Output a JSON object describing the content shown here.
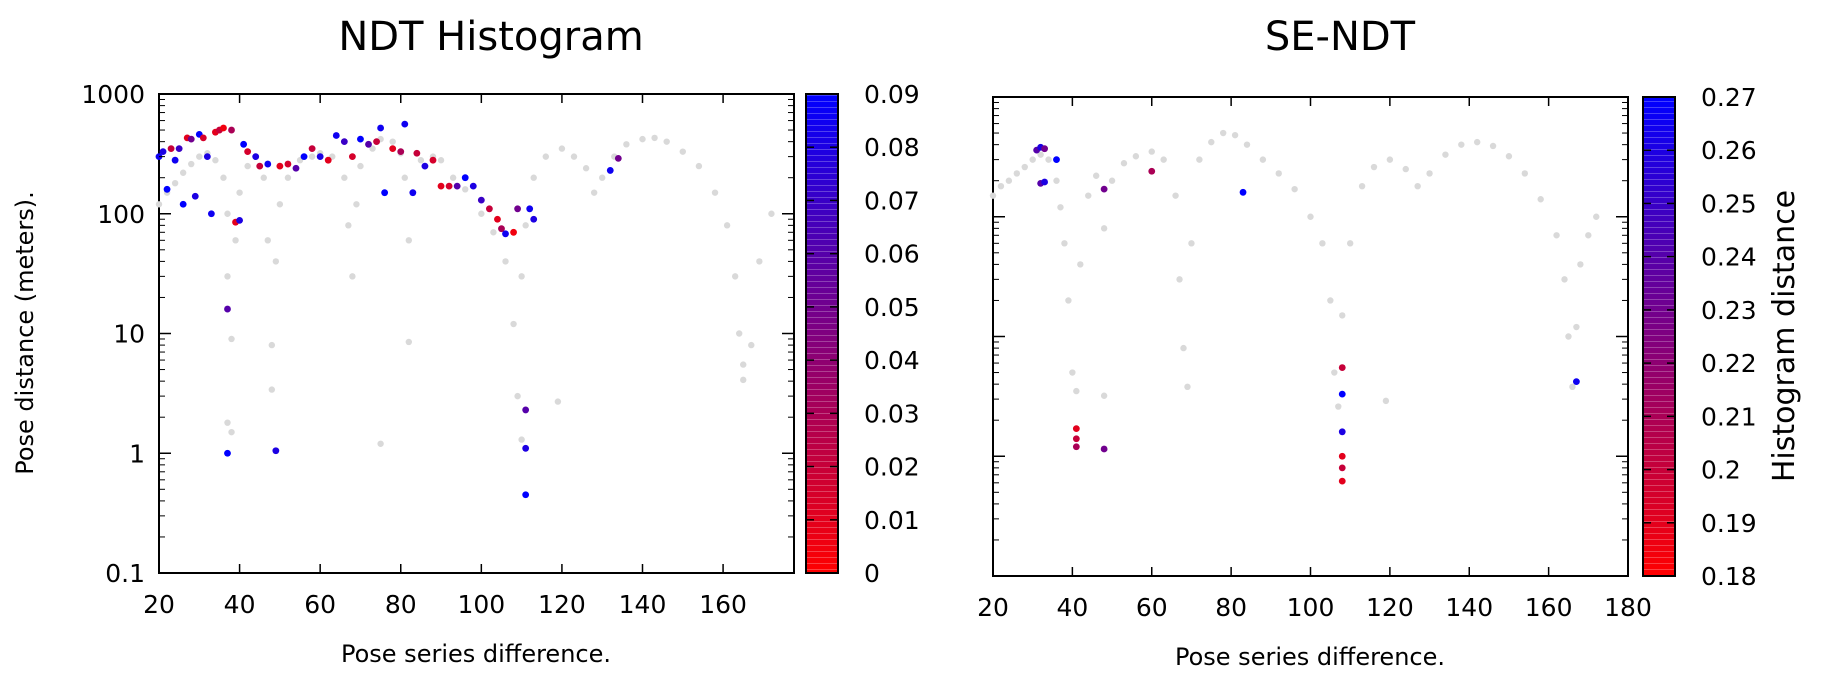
{
  "chart_data": [
    {
      "type": "scatter",
      "title": "NDT Histogram",
      "xlabel": "Pose series difference.",
      "ylabel": "Pose distance (meters).",
      "xlim": [
        20,
        180
      ],
      "ylim": [
        0.1,
        1000
      ],
      "y_scale": "log",
      "x_ticks": [
        "20",
        "40",
        "60",
        "80",
        "100",
        "120",
        "140",
        "160"
      ],
      "y_ticks": [
        "1000",
        "100",
        "10",
        "1",
        "0.1"
      ],
      "colorbar": {
        "label": "",
        "range": [
          0,
          0.09
        ],
        "ticks": [
          "0.09",
          "0.08",
          "0.07",
          "0.06",
          "0.05",
          "0.04",
          "0.03",
          "0.02",
          "0.01",
          "0"
        ],
        "colors": [
          "#ff0000",
          "#0000ff"
        ]
      },
      "background_color": "#d9d9d9",
      "background_series": [
        [
          20,
          120
        ],
        [
          22,
          150
        ],
        [
          24,
          180
        ],
        [
          26,
          220
        ],
        [
          28,
          260
        ],
        [
          30,
          300
        ],
        [
          32,
          320
        ],
        [
          34,
          280
        ],
        [
          36,
          200
        ],
        [
          37,
          100
        ],
        [
          37,
          30
        ],
        [
          37,
          1.8
        ],
        [
          38,
          1.5
        ],
        [
          38,
          9
        ],
        [
          39,
          60
        ],
        [
          40,
          150
        ],
        [
          42,
          250
        ],
        [
          44,
          300
        ],
        [
          46,
          200
        ],
        [
          47,
          60
        ],
        [
          48,
          8
        ],
        [
          48,
          3.4
        ],
        [
          49,
          40
        ],
        [
          50,
          120
        ],
        [
          52,
          200
        ],
        [
          55,
          280
        ],
        [
          58,
          300
        ],
        [
          60,
          320
        ],
        [
          63,
          300
        ],
        [
          66,
          200
        ],
        [
          67,
          80
        ],
        [
          68,
          30
        ],
        [
          69,
          120
        ],
        [
          70,
          250
        ],
        [
          73,
          350
        ],
        [
          75,
          420
        ],
        [
          75,
          1.2
        ],
        [
          78,
          400
        ],
        [
          80,
          320
        ],
        [
          81,
          200
        ],
        [
          82,
          60
        ],
        [
          82,
          8.5
        ],
        [
          83,
          150
        ],
        [
          85,
          280
        ],
        [
          88,
          300
        ],
        [
          90,
          280
        ],
        [
          93,
          200
        ],
        [
          96,
          160
        ],
        [
          100,
          100
        ],
        [
          103,
          70
        ],
        [
          106,
          40
        ],
        [
          108,
          12
        ],
        [
          109,
          3
        ],
        [
          110,
          1.3
        ],
        [
          110,
          30
        ],
        [
          111,
          80
        ],
        [
          113,
          200
        ],
        [
          116,
          300
        ],
        [
          119,
          2.7
        ],
        [
          120,
          350
        ],
        [
          123,
          300
        ],
        [
          126,
          240
        ],
        [
          128,
          150
        ],
        [
          130,
          200
        ],
        [
          133,
          300
        ],
        [
          136,
          380
        ],
        [
          140,
          420
        ],
        [
          143,
          430
        ],
        [
          146,
          400
        ],
        [
          150,
          330
        ],
        [
          154,
          250
        ],
        [
          158,
          150
        ],
        [
          161,
          80
        ],
        [
          163,
          30
        ],
        [
          164,
          10
        ],
        [
          165,
          5.5
        ],
        [
          165,
          4.1
        ],
        [
          167,
          8
        ],
        [
          169,
          40
        ],
        [
          172,
          100
        ]
      ],
      "points": [
        {
          "x": 20,
          "y": 300,
          "v": 0.085
        },
        {
          "x": 21,
          "y": 330,
          "v": 0.08
        },
        {
          "x": 22,
          "y": 160,
          "v": 0.09
        },
        {
          "x": 23,
          "y": 350,
          "v": 0.02
        },
        {
          "x": 24,
          "y": 280,
          "v": 0.085
        },
        {
          "x": 25,
          "y": 350,
          "v": 0.07
        },
        {
          "x": 26,
          "y": 120,
          "v": 0.09
        },
        {
          "x": 27,
          "y": 430,
          "v": 0.01
        },
        {
          "x": 28,
          "y": 420,
          "v": 0.05
        },
        {
          "x": 29,
          "y": 140,
          "v": 0.08
        },
        {
          "x": 30,
          "y": 460,
          "v": 0.09
        },
        {
          "x": 31,
          "y": 430,
          "v": 0.015
        },
        {
          "x": 32,
          "y": 300,
          "v": 0.08
        },
        {
          "x": 33,
          "y": 100,
          "v": 0.085
        },
        {
          "x": 34,
          "y": 480,
          "v": 0.01
        },
        {
          "x": 35,
          "y": 500,
          "v": 0.02
        },
        {
          "x": 36,
          "y": 520,
          "v": 0.005
        },
        {
          "x": 37,
          "y": 16,
          "v": 0.06
        },
        {
          "x": 37,
          "y": 1,
          "v": 0.09
        },
        {
          "x": 38,
          "y": 500,
          "v": 0.03
        },
        {
          "x": 39,
          "y": 85,
          "v": 0.01
        },
        {
          "x": 40,
          "y": 88,
          "v": 0.08
        },
        {
          "x": 41,
          "y": 380,
          "v": 0.09
        },
        {
          "x": 42,
          "y": 330,
          "v": 0.015
        },
        {
          "x": 44,
          "y": 300,
          "v": 0.08
        },
        {
          "x": 45,
          "y": 250,
          "v": 0.02
        },
        {
          "x": 47,
          "y": 260,
          "v": 0.085
        },
        {
          "x": 49,
          "y": 1.05,
          "v": 0.08
        },
        {
          "x": 50,
          "y": 250,
          "v": 0.01
        },
        {
          "x": 52,
          "y": 260,
          "v": 0.015
        },
        {
          "x": 54,
          "y": 240,
          "v": 0.06
        },
        {
          "x": 56,
          "y": 300,
          "v": 0.09
        },
        {
          "x": 58,
          "y": 350,
          "v": 0.02
        },
        {
          "x": 60,
          "y": 300,
          "v": 0.08
        },
        {
          "x": 62,
          "y": 280,
          "v": 0.01
        },
        {
          "x": 64,
          "y": 450,
          "v": 0.085
        },
        {
          "x": 66,
          "y": 400,
          "v": 0.07
        },
        {
          "x": 68,
          "y": 300,
          "v": 0.015
        },
        {
          "x": 70,
          "y": 420,
          "v": 0.09
        },
        {
          "x": 72,
          "y": 380,
          "v": 0.06
        },
        {
          "x": 74,
          "y": 400,
          "v": 0.02
        },
        {
          "x": 75,
          "y": 520,
          "v": 0.085
        },
        {
          "x": 76,
          "y": 150,
          "v": 0.09
        },
        {
          "x": 78,
          "y": 350,
          "v": 0.01
        },
        {
          "x": 80,
          "y": 330,
          "v": 0.03
        },
        {
          "x": 81,
          "y": 560,
          "v": 0.085
        },
        {
          "x": 83,
          "y": 150,
          "v": 0.085
        },
        {
          "x": 84,
          "y": 320,
          "v": 0.02
        },
        {
          "x": 86,
          "y": 250,
          "v": 0.08
        },
        {
          "x": 88,
          "y": 280,
          "v": 0.015
        },
        {
          "x": 90,
          "y": 170,
          "v": 0.01
        },
        {
          "x": 92,
          "y": 170,
          "v": 0.015
        },
        {
          "x": 94,
          "y": 170,
          "v": 0.06
        },
        {
          "x": 96,
          "y": 200,
          "v": 0.09
        },
        {
          "x": 98,
          "y": 170,
          "v": 0.08
        },
        {
          "x": 100,
          "y": 130,
          "v": 0.07
        },
        {
          "x": 102,
          "y": 110,
          "v": 0.02
        },
        {
          "x": 104,
          "y": 90,
          "v": 0.01
        },
        {
          "x": 105,
          "y": 75,
          "v": 0.03
        },
        {
          "x": 106,
          "y": 68,
          "v": 0.085
        },
        {
          "x": 108,
          "y": 70,
          "v": 0.005
        },
        {
          "x": 109,
          "y": 110,
          "v": 0.05
        },
        {
          "x": 111,
          "y": 2.3,
          "v": 0.06
        },
        {
          "x": 111,
          "y": 1.1,
          "v": 0.08
        },
        {
          "x": 111,
          "y": 0.45,
          "v": 0.09
        },
        {
          "x": 112,
          "y": 110,
          "v": 0.085
        },
        {
          "x": 113,
          "y": 90,
          "v": 0.08
        },
        {
          "x": 132,
          "y": 230,
          "v": 0.085
        },
        {
          "x": 134,
          "y": 290,
          "v": 0.05
        }
      ]
    },
    {
      "type": "scatter",
      "title": "SE-NDT",
      "xlabel": "Pose series difference.",
      "ylabel": "",
      "xlim": [
        20,
        180
      ],
      "ylim": [
        0.1,
        1000
      ],
      "y_scale": "log",
      "x_ticks": [
        "20",
        "40",
        "60",
        "80",
        "100",
        "120",
        "140",
        "160",
        "180"
      ],
      "colorbar": {
        "label": "Histogram distance",
        "range": [
          0.18,
          0.27
        ],
        "ticks": [
          "0.27",
          "0.26",
          "0.25",
          "0.24",
          "0.23",
          "0.22",
          "0.21",
          "0.2",
          "0.19",
          "0.18"
        ],
        "colors": [
          "#ff0000",
          "#0000ff"
        ]
      },
      "background_color": "#d9d9d9",
      "background_series": [
        [
          20,
          150
        ],
        [
          22,
          180
        ],
        [
          24,
          200
        ],
        [
          26,
          230
        ],
        [
          28,
          260
        ],
        [
          30,
          300
        ],
        [
          32,
          330
        ],
        [
          34,
          300
        ],
        [
          36,
          200
        ],
        [
          37,
          120
        ],
        [
          38,
          60
        ],
        [
          39,
          20
        ],
        [
          40,
          5
        ],
        [
          41,
          3.5
        ],
        [
          42,
          40
        ],
        [
          44,
          150
        ],
        [
          46,
          220
        ],
        [
          48,
          80
        ],
        [
          48,
          3.2
        ],
        [
          50,
          200
        ],
        [
          53,
          280
        ],
        [
          56,
          320
        ],
        [
          60,
          350
        ],
        [
          63,
          300
        ],
        [
          66,
          150
        ],
        [
          67,
          30
        ],
        [
          68,
          8
        ],
        [
          69,
          3.8
        ],
        [
          70,
          60
        ],
        [
          72,
          300
        ],
        [
          75,
          420
        ],
        [
          78,
          500
        ],
        [
          81,
          480
        ],
        [
          84,
          400
        ],
        [
          88,
          300
        ],
        [
          92,
          230
        ],
        [
          96,
          170
        ],
        [
          100,
          100
        ],
        [
          103,
          60
        ],
        [
          105,
          20
        ],
        [
          106,
          5
        ],
        [
          107,
          2.6
        ],
        [
          108,
          15
        ],
        [
          110,
          60
        ],
        [
          113,
          180
        ],
        [
          116,
          260
        ],
        [
          119,
          2.9
        ],
        [
          120,
          300
        ],
        [
          124,
          250
        ],
        [
          127,
          180
        ],
        [
          130,
          230
        ],
        [
          134,
          330
        ],
        [
          138,
          400
        ],
        [
          142,
          420
        ],
        [
          146,
          390
        ],
        [
          150,
          320
        ],
        [
          154,
          230
        ],
        [
          158,
          140
        ],
        [
          162,
          70
        ],
        [
          164,
          30
        ],
        [
          165,
          10
        ],
        [
          166,
          3.8
        ],
        [
          167,
          12
        ],
        [
          168,
          40
        ],
        [
          170,
          70
        ],
        [
          172,
          100
        ]
      ],
      "points": [
        {
          "x": 31,
          "y": 360,
          "v": 0.24
        },
        {
          "x": 32,
          "y": 380,
          "v": 0.26
        },
        {
          "x": 33,
          "y": 370,
          "v": 0.23
        },
        {
          "x": 32,
          "y": 190,
          "v": 0.24
        },
        {
          "x": 33,
          "y": 195,
          "v": 0.26
        },
        {
          "x": 36,
          "y": 300,
          "v": 0.27
        },
        {
          "x": 41,
          "y": 1.7,
          "v": 0.19
        },
        {
          "x": 41,
          "y": 1.4,
          "v": 0.2
        },
        {
          "x": 41,
          "y": 1.2,
          "v": 0.21
        },
        {
          "x": 48,
          "y": 1.15,
          "v": 0.23
        },
        {
          "x": 48,
          "y": 170,
          "v": 0.23
        },
        {
          "x": 60,
          "y": 240,
          "v": 0.21
        },
        {
          "x": 83,
          "y": 160,
          "v": 0.27
        },
        {
          "x": 108,
          "y": 5.5,
          "v": 0.2
        },
        {
          "x": 108,
          "y": 3.3,
          "v": 0.27
        },
        {
          "x": 108,
          "y": 1.6,
          "v": 0.26
        },
        {
          "x": 108,
          "y": 1.0,
          "v": 0.19
        },
        {
          "x": 108,
          "y": 0.8,
          "v": 0.2
        },
        {
          "x": 108,
          "y": 0.62,
          "v": 0.19
        },
        {
          "x": 167,
          "y": 4.2,
          "v": 0.265
        }
      ]
    }
  ]
}
